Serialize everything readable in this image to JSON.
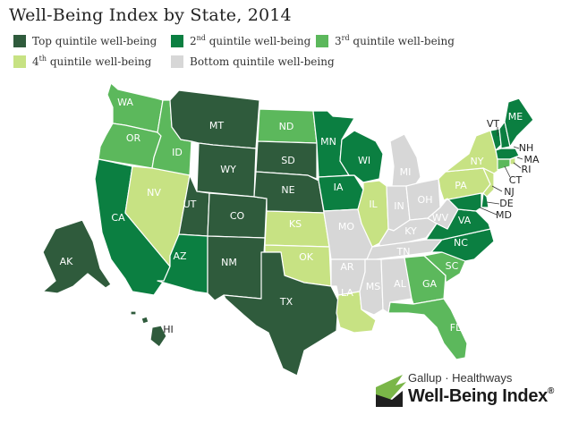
{
  "title": "Well-Being Index by State, 2014",
  "legend": [
    {
      "key": "q1",
      "pre": "Top quintile well-being",
      "sup": "",
      "post": "",
      "color": "#2f5b3c"
    },
    {
      "key": "q2",
      "pre": "2",
      "sup": "nd",
      "post": " quintile well-being",
      "color": "#0b7f41"
    },
    {
      "key": "q3",
      "pre": "3",
      "sup": "rd",
      "post": " quintile well-being",
      "color": "#5cb85c"
    },
    {
      "key": "q4",
      "pre": "4",
      "sup": "th",
      "post": " quintile well-being",
      "color": "#c7e283"
    },
    {
      "key": "q5",
      "pre": "Bottom quintile well-being",
      "sup": "",
      "post": "",
      "color": "#d7d7d7"
    }
  ],
  "states": {
    "WA": "q3",
    "OR": "q3",
    "CA": "q2",
    "ID": "q3",
    "NV": "q4",
    "MT": "q1",
    "WY": "q1",
    "UT": "q1",
    "AZ": "q2",
    "CO": "q1",
    "NM": "q1",
    "ND": "q3",
    "SD": "q1",
    "NE": "q1",
    "KS": "q4",
    "OK": "q4",
    "TX": "q1",
    "MN": "q2",
    "IA": "q2",
    "MO": "q5",
    "AR": "q5",
    "LA": "q4",
    "WI": "q2",
    "IL": "q4",
    "MI": "q5",
    "IN": "q5",
    "OH": "q5",
    "KY": "q5",
    "TN": "q5",
    "MS": "q5",
    "AL": "q5",
    "GA": "q3",
    "FL": "q3",
    "SC": "q3",
    "NC": "q2",
    "VA": "q2",
    "WV": "q5",
    "PA": "q4",
    "NY": "q4",
    "VT": "q2",
    "NH": "q2",
    "ME": "q2",
    "MA": "q2",
    "RI": "q4",
    "CT": "q3",
    "NJ": "q4",
    "DE": "q2",
    "MD": "q2",
    "AK": "q1",
    "HI": "q1"
  },
  "brand": {
    "top": "Gallup · Healthways",
    "main": "Well-Being Index"
  }
}
